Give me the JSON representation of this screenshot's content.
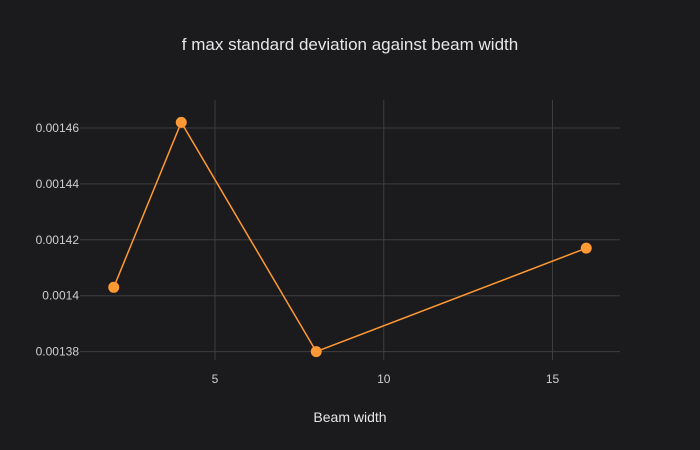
{
  "chart_data": {
    "type": "line",
    "title": "f max standard deviation against beam width",
    "xlabel": "Beam width",
    "ylabel": "",
    "x": [
      2,
      4,
      8,
      16
    ],
    "series": [
      {
        "values": [
          0.001403,
          0.001462,
          0.00138,
          0.001417
        ]
      }
    ],
    "xlim": [
      1,
      17
    ],
    "ylim": [
      0.001377,
      0.00147
    ],
    "xticks": [
      5,
      10,
      15
    ],
    "xtick_labels": [
      "5",
      "10",
      "15"
    ],
    "yticks": [
      0.00138,
      0.0014,
      0.00142,
      0.00144,
      0.00146
    ],
    "ytick_labels": [
      "0.00138",
      "0.0014",
      "0.00142",
      "0.00144",
      "0.00146"
    ],
    "grid": true,
    "mode": "lines+markers",
    "colors": {
      "background": "#1b1b1d",
      "grid": "#3e3e40",
      "series": "#ff9933",
      "text": "#e6e6e6"
    }
  }
}
